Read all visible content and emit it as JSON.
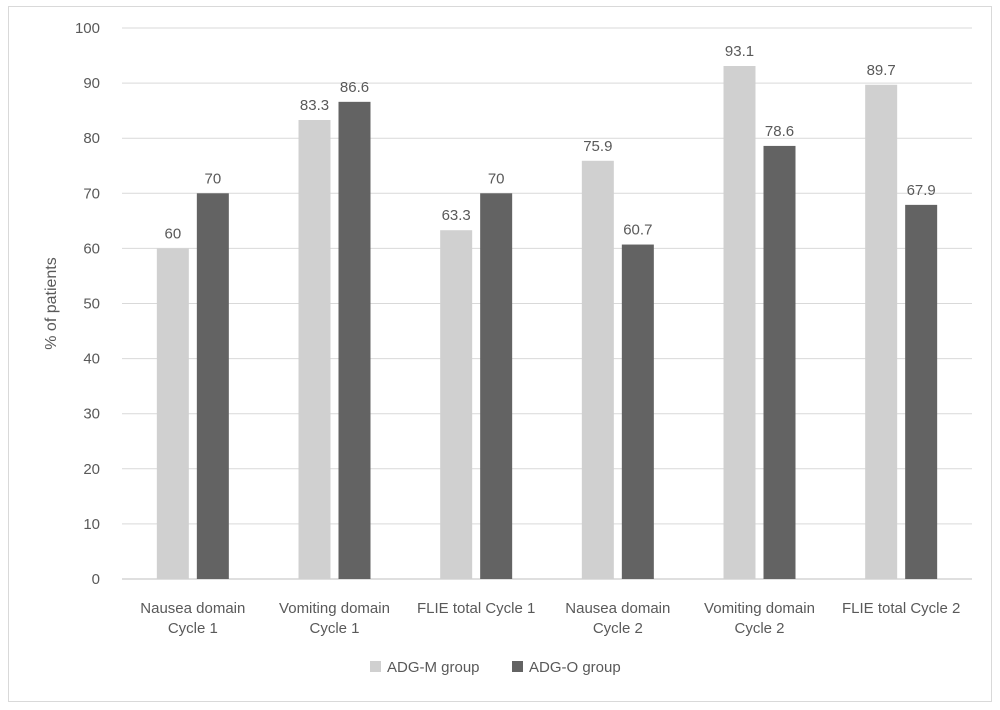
{
  "chart_data": {
    "type": "bar",
    "categories": [
      [
        "Nausea domain",
        "Cycle 1"
      ],
      [
        "Vomiting domain",
        "Cycle 1"
      ],
      [
        "FLIE total Cycle 1"
      ],
      [
        "Nausea domain",
        "Cycle 2"
      ],
      [
        "Vomiting domain",
        "Cycle 2"
      ],
      [
        "FLIE total Cycle 2"
      ]
    ],
    "series": [
      {
        "name": "ADG-M group",
        "color": "#d0d0d0",
        "values": [
          60,
          83.3,
          63.3,
          75.9,
          93.1,
          89.7
        ],
        "labels": [
          "60",
          "83.3",
          "63.3",
          "75.9",
          "93.1",
          "89.7"
        ]
      },
      {
        "name": "ADG-O group",
        "color": "#636363",
        "values": [
          70,
          86.6,
          70,
          60.7,
          78.6,
          67.9
        ],
        "labels": [
          "70",
          "86.6",
          "70",
          "60.7",
          "78.6",
          "67.9"
        ]
      }
    ],
    "ylabel": "% of patients",
    "ylim": [
      0,
      100
    ],
    "yticks": [
      0,
      10,
      20,
      30,
      40,
      50,
      60,
      70,
      80,
      90,
      100
    ],
    "grid": true,
    "legend": "bottom"
  }
}
